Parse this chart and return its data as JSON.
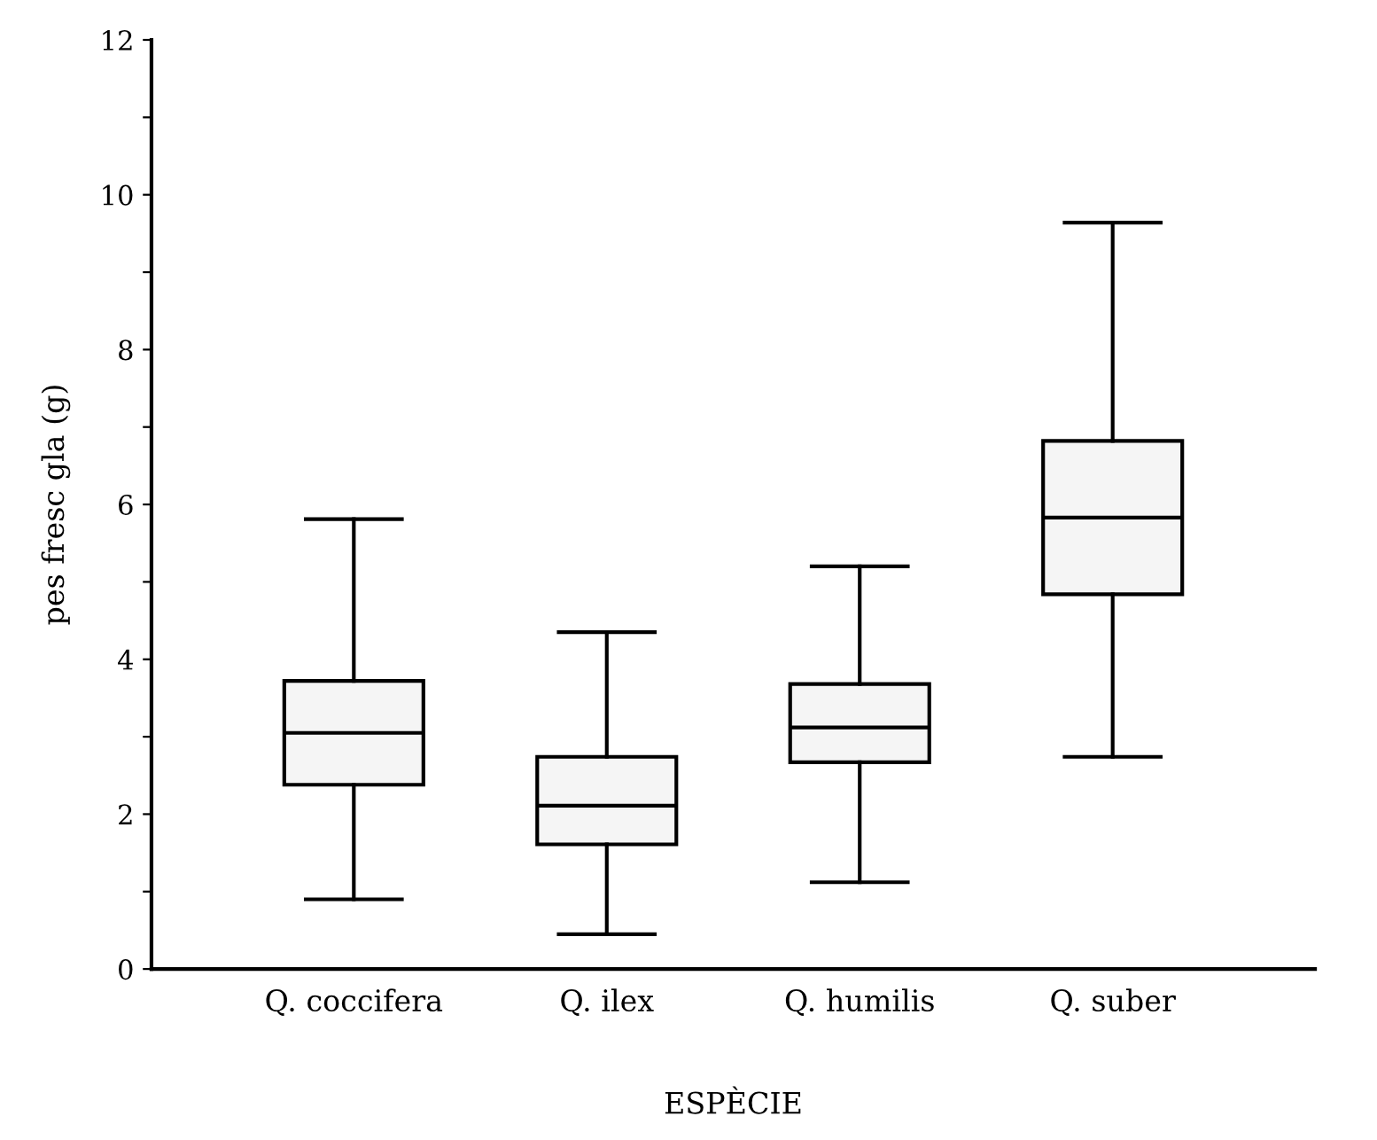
{
  "chart_data": {
    "type": "box",
    "xlabel": "ESPÈCIE",
    "ylabel": "pes fresc gla (g)",
    "categories": [
      "Q. coccifera",
      "Q. ilex",
      "Q. humilis",
      "Q. suber"
    ],
    "boxes": [
      {
        "low": 0.9,
        "q1": 2.38,
        "median": 3.05,
        "q3": 3.72,
        "high": 5.81
      },
      {
        "low": 0.45,
        "q1": 1.61,
        "median": 2.11,
        "q3": 2.74,
        "high": 4.35
      },
      {
        "low": 1.12,
        "q1": 2.67,
        "median": 3.12,
        "q3": 3.68,
        "high": 5.2
      },
      {
        "low": 2.74,
        "q1": 4.84,
        "median": 5.83,
        "q3": 6.82,
        "high": 9.64
      }
    ],
    "color": "#f5f5f5",
    "ylim": [
      0,
      12
    ],
    "yticks": [
      0,
      {
        "value": 1,
        "label": null
      },
      2,
      {
        "value": 3,
        "label": null
      },
      4,
      {
        "value": 5,
        "label": null
      },
      6,
      {
        "value": 7,
        "label": null
      },
      8,
      {
        "value": 9,
        "label": null
      },
      10,
      {
        "value": 11,
        "label": null
      },
      12
    ],
    "grid": false,
    "legend": false
  }
}
